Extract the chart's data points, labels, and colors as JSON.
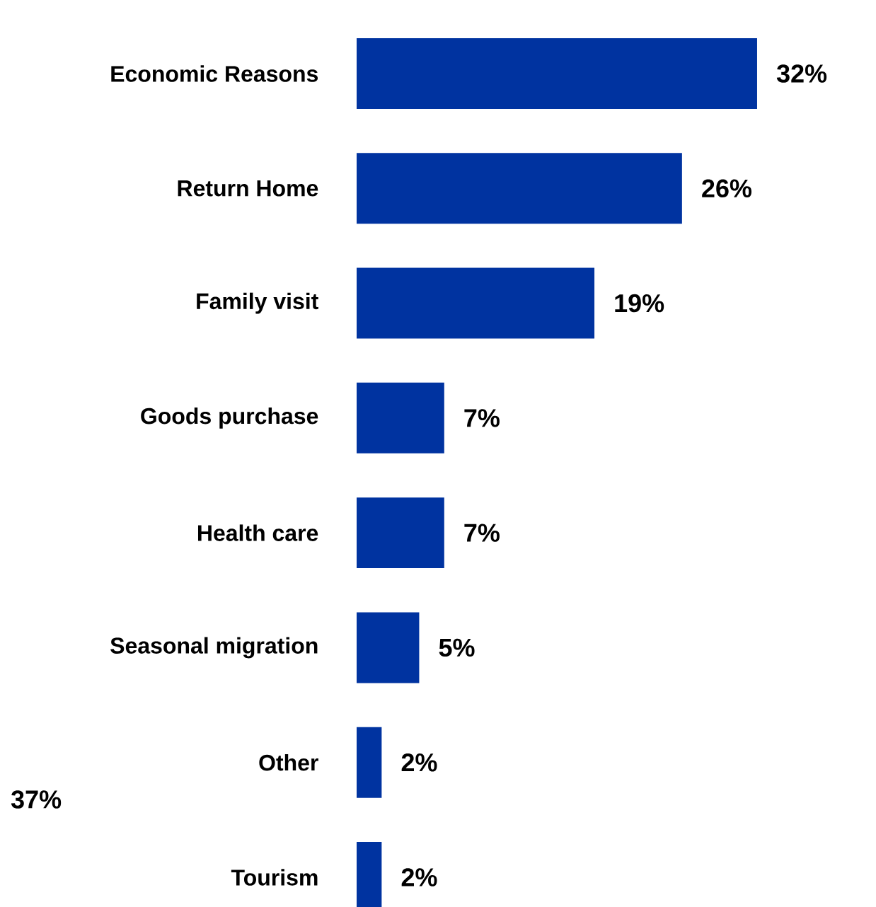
{
  "chart_data": {
    "type": "bar",
    "orientation": "horizontal",
    "categories": [
      "Economic Reasons",
      "Return Home",
      "Family visit",
      "Goods purchase",
      "Health care",
      "Seasonal migration",
      "Other",
      "Tourism"
    ],
    "values": [
      32,
      26,
      19,
      7,
      7,
      5,
      2,
      2
    ],
    "value_labels": [
      "32%",
      "26%",
      "19%",
      "7%",
      "7%",
      "5%",
      "2%",
      "2%"
    ],
    "color": "#0033a0",
    "annotations": [
      "37%"
    ]
  }
}
